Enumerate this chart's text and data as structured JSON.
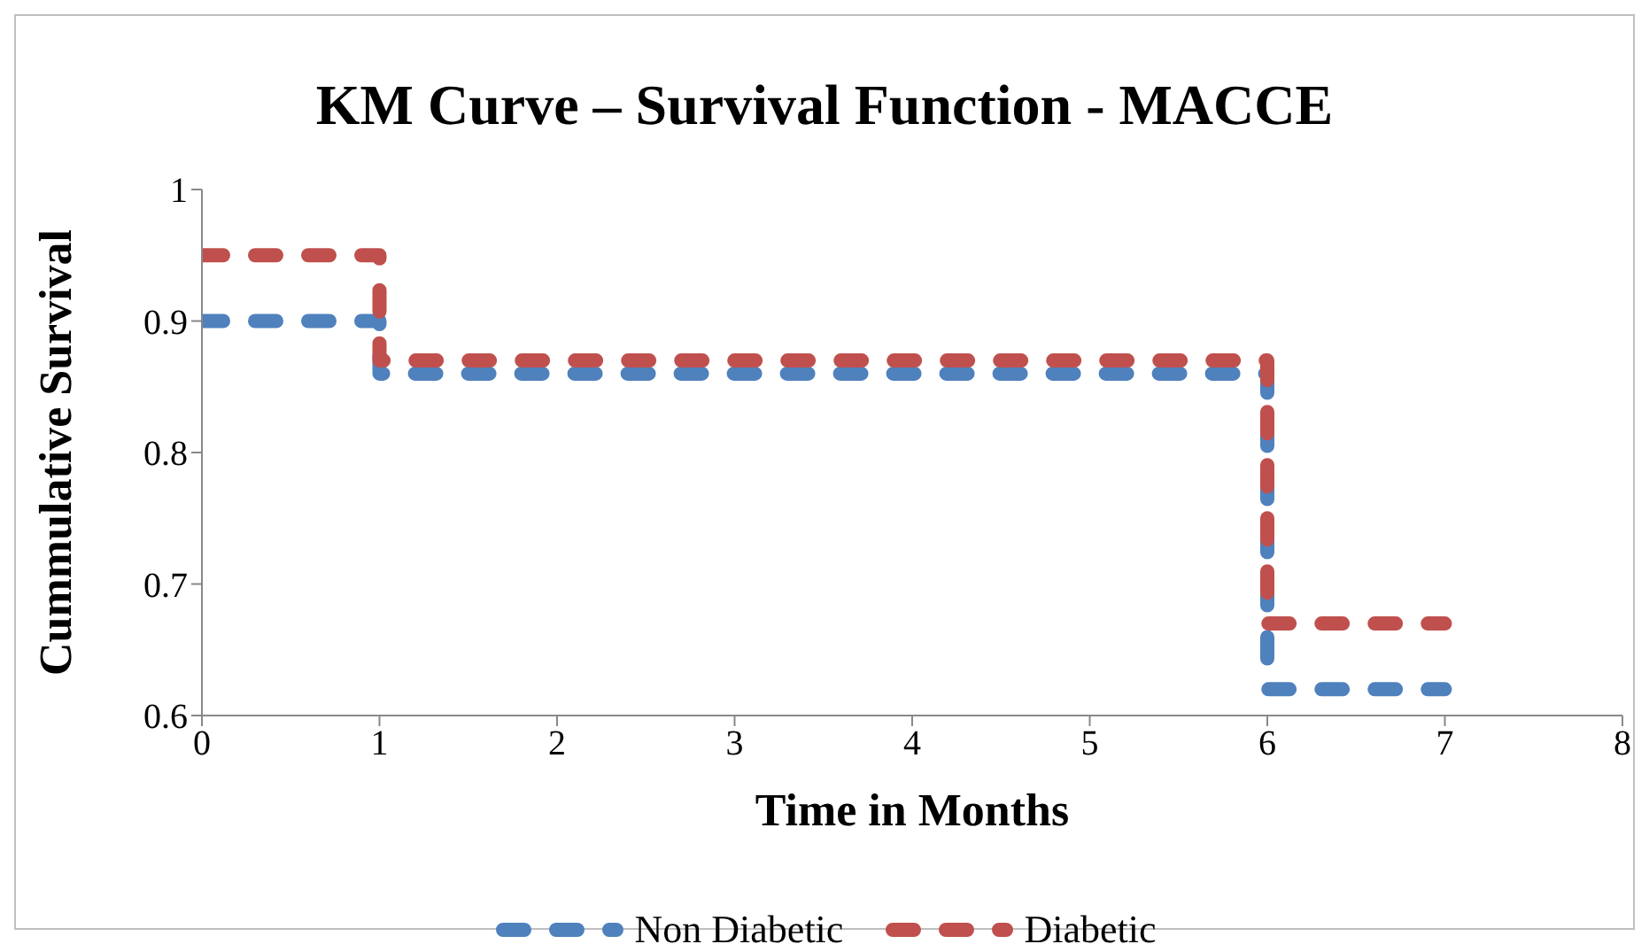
{
  "chart_data": {
    "type": "step",
    "title": "KM Curve – Survival Function - MACCE",
    "xlabel": "Time in Months",
    "ylabel": "Cummulative Survival",
    "x": [
      0,
      1,
      6,
      7
    ],
    "series": [
      {
        "name": "Non Diabetic",
        "color": "#4f81bd",
        "values": [
          0.9,
          0.86,
          0.62,
          0.62
        ]
      },
      {
        "name": "Diabetic",
        "color": "#c0504d",
        "values": [
          0.95,
          0.87,
          0.67,
          0.67
        ]
      }
    ],
    "xlim": [
      0,
      8
    ],
    "xticks": [
      0,
      1,
      2,
      3,
      4,
      5,
      6,
      7,
      8
    ],
    "ylim": [
      0.6,
      1
    ],
    "yticks": [
      0.6,
      0.7,
      0.8,
      0.9,
      1
    ],
    "legend": "bottom",
    "line_style": "dashed"
  }
}
